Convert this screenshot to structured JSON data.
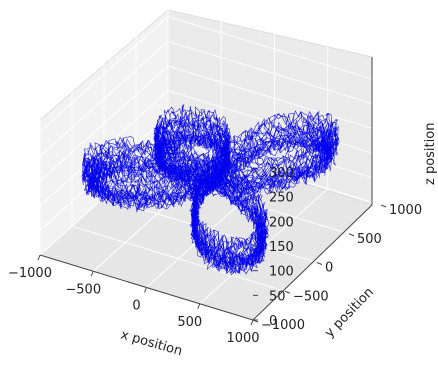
{
  "chart_data": {
    "type": "3d-line",
    "title": "",
    "xlabel": "x position",
    "ylabel": "y position",
    "zlabel": "z position",
    "x_ticks": [
      "−1000",
      "−500",
      "0",
      "500",
      "1000"
    ],
    "y_ticks": [
      "−1000",
      "−500",
      "0",
      "500",
      "1000"
    ],
    "z_ticks": [
      "0",
      "50",
      "100",
      "150",
      "200",
      "250",
      "300"
    ],
    "xlim": [
      -1000,
      1000
    ],
    "ylim": [
      -1000,
      1000
    ],
    "zlim": [
      0,
      300
    ],
    "grid": true,
    "series": [
      {
        "style": "thin-line",
        "color": "#0000ee",
        "shape": "four-petal rose trajectory repeated over many loops with noise",
        "points": [
          [
            0,
            0,
            100
          ],
          [
            350,
            350,
            120
          ],
          [
            700,
            500,
            160
          ],
          [
            950,
            350,
            130
          ],
          [
            950,
            -350,
            90
          ],
          [
            700,
            -500,
            60
          ],
          [
            350,
            -350,
            80
          ],
          [
            0,
            0,
            100
          ],
          [
            -350,
            350,
            120
          ],
          [
            -700,
            500,
            160
          ],
          [
            -950,
            350,
            130
          ],
          [
            -950,
            -350,
            90
          ],
          [
            -700,
            -500,
            60
          ],
          [
            -350,
            -350,
            80
          ],
          [
            0,
            0,
            100
          ]
        ]
      }
    ]
  }
}
